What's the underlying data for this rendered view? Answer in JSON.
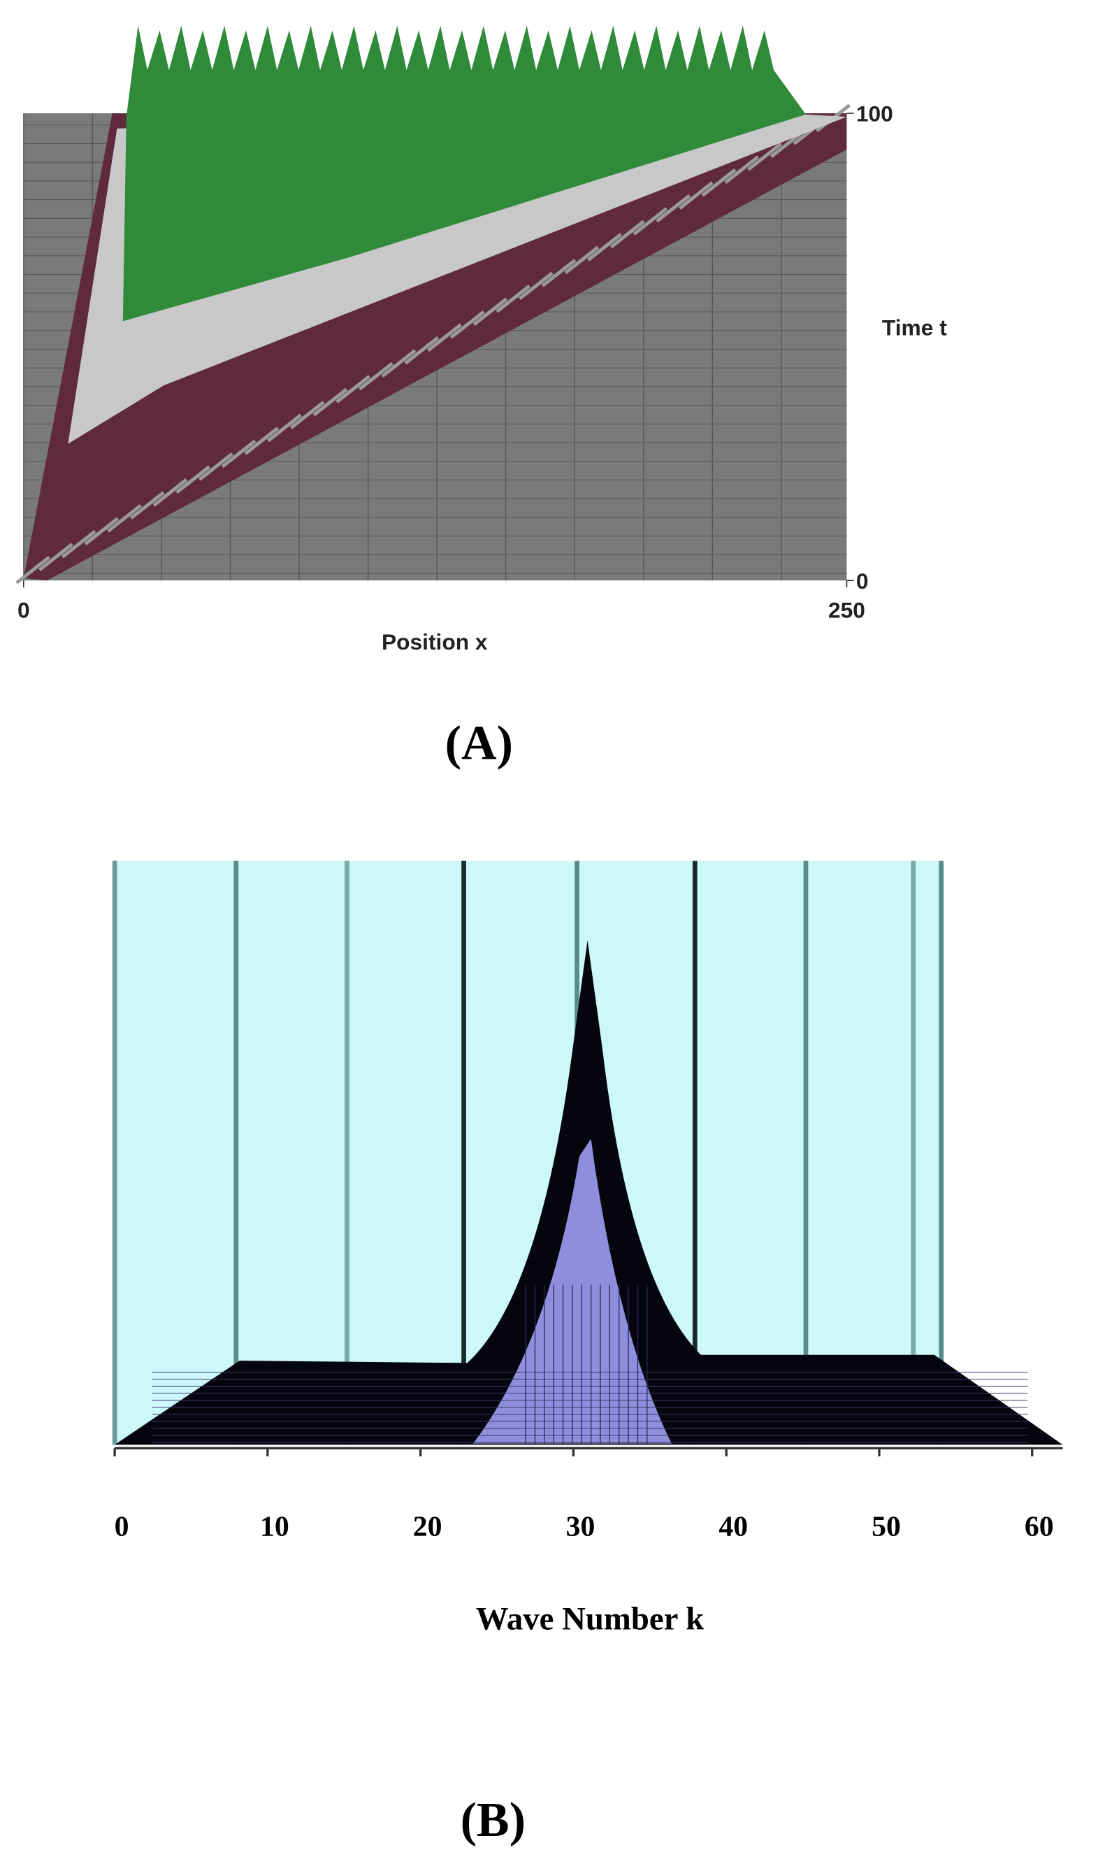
{
  "chart_data": [
    {
      "type": "surface",
      "panel_label": "(A)",
      "x_label": "Position x",
      "y_label": "Time t",
      "xlim": [
        0,
        250
      ],
      "xticks": [
        0,
        250
      ],
      "ylim": [
        0,
        100
      ],
      "yticks": [
        0,
        100
      ]
    },
    {
      "type": "surface",
      "panel_label": "(B)",
      "x_label": "Wave Number k",
      "xlim": [
        0,
        62
      ],
      "xticks": [
        0,
        10,
        20,
        30,
        40,
        50,
        60
      ]
    }
  ]
}
